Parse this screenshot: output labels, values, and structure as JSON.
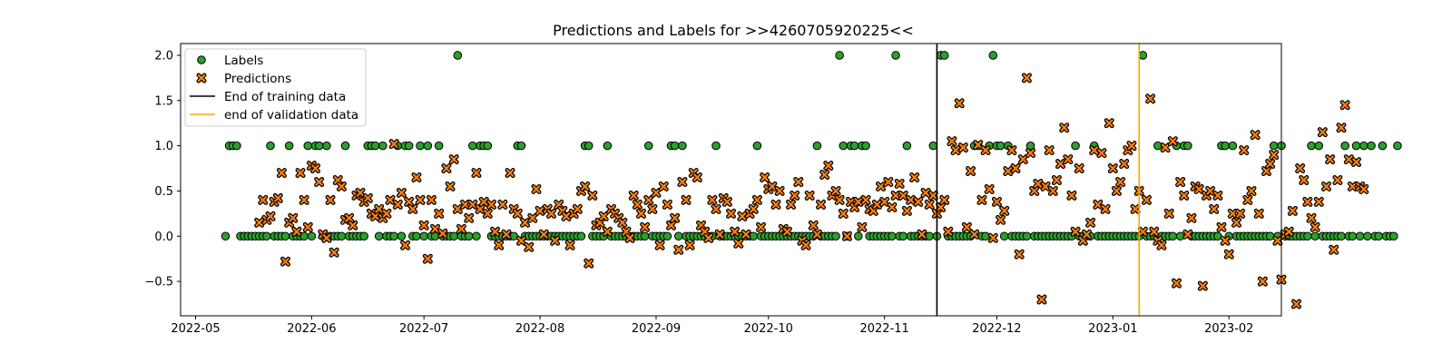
{
  "colors": {
    "label_fill": "#2ca02c",
    "prediction_fill": "#ff7f0e",
    "marker_edge": "#000000",
    "training_line": "#000000",
    "validation_line": "#ffa500"
  },
  "chart_data": {
    "type": "scatter",
    "title": "Predictions and Labels for >>4260705920225<<",
    "xlabel": "",
    "ylabel": "",
    "x_type": "date",
    "xlim": [
      "2022-04-27",
      "2023-02-15"
    ],
    "ylim": [
      -0.88,
      2.13
    ],
    "x_ticks": [
      {
        "value": "2022-05-01",
        "label": "2022-05"
      },
      {
        "value": "2022-06-01",
        "label": "2022-06"
      },
      {
        "value": "2022-07-01",
        "label": "2022-07"
      },
      {
        "value": "2022-08-01",
        "label": "2022-08"
      },
      {
        "value": "2022-09-01",
        "label": "2022-09"
      },
      {
        "value": "2022-10-01",
        "label": "2022-10"
      },
      {
        "value": "2022-11-01",
        "label": "2022-11"
      },
      {
        "value": "2022-12-01",
        "label": "2022-12"
      },
      {
        "value": "2023-01-01",
        "label": "2023-01"
      },
      {
        "value": "2023-02-01",
        "label": "2023-02"
      }
    ],
    "y_ticks": [
      {
        "value": 2.0,
        "label": "2.0"
      },
      {
        "value": 1.5,
        "label": "1.5"
      },
      {
        "value": 1.0,
        "label": "1.0"
      },
      {
        "value": 0.5,
        "label": "0.5"
      },
      {
        "value": 0.0,
        "label": "0.0"
      },
      {
        "value": -0.5,
        "label": "−0.5"
      }
    ],
    "grid": false,
    "legend_position": "top-left",
    "legend": [
      {
        "label": "Labels",
        "kind": "labels"
      },
      {
        "label": "Predictions",
        "kind": "predictions"
      },
      {
        "label": "End of training data",
        "kind": "training_line"
      },
      {
        "label": "end of validation data",
        "kind": "validation_line"
      }
    ],
    "vertical_lines": [
      {
        "name": "End of training data",
        "x": "2022-11-15"
      },
      {
        "name": "end of validation data",
        "x": "2023-01-08"
      }
    ],
    "series": [
      {
        "name": "Labels",
        "marker": "circle",
        "start_date": "2022-05-09",
        "values": [
          0,
          1,
          1,
          1,
          0,
          0,
          0,
          0,
          0,
          0,
          0,
          0,
          1,
          0,
          0,
          0,
          0,
          1,
          0,
          0,
          0,
          0,
          1,
          0,
          1,
          1,
          0,
          1,
          0,
          0,
          0,
          0,
          1,
          0,
          0,
          0,
          0,
          0,
          1,
          1,
          1,
          0,
          1,
          0,
          0,
          0,
          1,
          0,
          1,
          1,
          0,
          0,
          1,
          0,
          1,
          0,
          0,
          1,
          0,
          0,
          0,
          0,
          2,
          0,
          0,
          0,
          1,
          0,
          1,
          1,
          1,
          0,
          0,
          0,
          0,
          0,
          0,
          0,
          1,
          1,
          0,
          0,
          0,
          0,
          0,
          0,
          0,
          0,
          0,
          0,
          0,
          0,
          0,
          0,
          0,
          0,
          1,
          1,
          0,
          0,
          0,
          0,
          1,
          0,
          0,
          0,
          0,
          0,
          0,
          0,
          0,
          0,
          0,
          1,
          0,
          0,
          0,
          0,
          0,
          1,
          1,
          0,
          1,
          0,
          0,
          0,
          0,
          0,
          0,
          0,
          0,
          1,
          0,
          0,
          0,
          0,
          0,
          0,
          0,
          0,
          0,
          0,
          1,
          0,
          0,
          0,
          0,
          0,
          0,
          0,
          0,
          0,
          0,
          0,
          0,
          0,
          0,
          0,
          1,
          0,
          0,
          0,
          0,
          0,
          2,
          1,
          0,
          1,
          1,
          0,
          1,
          1,
          0,
          0,
          0,
          0,
          0,
          0,
          0,
          2,
          0,
          0,
          1,
          0,
          0,
          0,
          0,
          0,
          0,
          1,
          0,
          2,
          2,
          0,
          0,
          0,
          0,
          0,
          0,
          0,
          1,
          1,
          0,
          0,
          1,
          2,
          1,
          1,
          0,
          1,
          0,
          0,
          0,
          0,
          0,
          1,
          0,
          0,
          0,
          0,
          0,
          0,
          0,
          0,
          0,
          0,
          0,
          1,
          0,
          0,
          0,
          0,
          1,
          0,
          0,
          0,
          0,
          0,
          0,
          0,
          0,
          0,
          0,
          0,
          0,
          2,
          0,
          0,
          0,
          1,
          0,
          0,
          0,
          0,
          1,
          0,
          1,
          1,
          0,
          0,
          0,
          0,
          0,
          0,
          0,
          0,
          1,
          1,
          0,
          1,
          0,
          0,
          0,
          0,
          0,
          0,
          0,
          0,
          0,
          0,
          1,
          0,
          1,
          0,
          0,
          0,
          0,
          0,
          0,
          0,
          1,
          0,
          1,
          0,
          0,
          0,
          0,
          0,
          0,
          1,
          0,
          0,
          1,
          0,
          1,
          0,
          1,
          0,
          0,
          1,
          0,
          0,
          0,
          1
        ]
      },
      {
        "name": "Predictions",
        "marker": "x",
        "start_date": "2022-05-18",
        "values": [
          0.15,
          0.4,
          0.18,
          0.22,
          0.38,
          0.42,
          0.7,
          -0.28,
          0.15,
          0.2,
          0.05,
          0.7,
          0.4,
          0.1,
          0.78,
          0.75,
          0.6,
          0.02,
          -0.02,
          0.4,
          -0.18,
          0.62,
          0.55,
          0.18,
          0.2,
          0.12,
          0.45,
          0.48,
          0.38,
          0.42,
          0.25,
          0.22,
          0.3,
          0.2,
          0.25,
          0.4,
          1.02,
          0.35,
          0.48,
          -0.1,
          0.38,
          0.3,
          0.65,
          0.4,
          0.12,
          -0.25,
          0.4,
          0.08,
          0.25,
          0.03,
          0.75,
          0.55,
          0.85,
          0.3,
          0.08,
          0.35,
          0.2,
          0.35,
          0.7,
          0.3,
          0.38,
          0.25,
          0.35,
          0.05,
          -0.1,
          0.35,
          0.02,
          0.7,
          0.3,
          0.25,
          -0.05,
          0.15,
          -0.12,
          0.2,
          0.52,
          0.28,
          0.02,
          0.3,
          0.25,
          -0.05,
          0.35,
          0.28,
          0.22,
          -0.1,
          0.25,
          0.3,
          0.5,
          0.55,
          -0.3,
          0.45,
          0.12,
          0.15,
          0.22,
          0.05,
          0.3,
          0.25,
          0.2,
          0.15,
          0.05,
          -0.02,
          0.45,
          0.35,
          0.25,
          0.1,
          0.4,
          0.3,
          0.48,
          -0.1,
          0.55,
          0.35,
          0.12,
          0.2,
          -0.15,
          0.6,
          0.4,
          -0.1,
          0.7,
          0.65,
          0.12,
          0.05,
          -0.02,
          0.4,
          0.3,
          0.02,
          0.42,
          0.38,
          0.25,
          0.05,
          -0.08,
          0.22,
          0.02,
          0.25,
          0.3,
          0.4,
          0.1,
          0.65,
          0.52,
          0.55,
          0.35,
          0.5,
          0.08,
          0.05,
          0.35,
          0.45,
          0.6,
          -0.05,
          -0.1,
          0.45,
          0.12,
          0.02,
          0.35,
          0.68,
          0.78,
          0.45,
          0.5,
          0.4,
          0.25,
          0.0,
          0.38,
          0.32,
          0.38,
          0.1,
          0.4,
          0.3,
          0.28,
          0.35,
          0.55,
          0.38,
          0.6,
          0.32,
          0.45,
          0.58,
          0.45,
          0.28,
          0.4,
          0.65,
          0.38,
          0.02,
          0.48,
          0.35,
          0.45,
          0.25,
          0.32,
          0.4,
          0.05,
          1.05,
          0.95,
          1.47,
          0.98,
          0.1,
          0.72,
          0.02,
          1.01,
          0.4,
          0.95,
          0.52,
          -0.02,
          0.38,
          0.18,
          0.28,
          0.72,
          0.95,
          0.75,
          -0.2,
          0.85,
          1.75,
          0.92,
          0.5,
          0.58,
          -0.7,
          0.55,
          0.95,
          0.5,
          0.62,
          0.8,
          1.2,
          0.85,
          0.45,
          0.05,
          0.75,
          -0.05,
          0.02,
          0.15,
          0.95,
          0.35,
          0.92,
          0.3,
          1.25,
          0.75,
          0.5,
          0.6,
          0.8,
          0.95,
          1.0,
          0.3,
          0.5,
          0.05,
          0.4,
          1.52,
          0.05,
          -0.05,
          -0.1,
          0.98,
          0.25,
          1.05,
          -0.52,
          0.6,
          0.45,
          0.02,
          0.2,
          0.55,
          0.52,
          -0.55,
          0.45,
          0.5,
          0.3,
          0.45,
          0.1,
          -0.05,
          -0.2,
          0.25,
          0.15,
          0.25,
          0.95,
          0.4,
          0.5,
          1.12,
          0.25,
          -0.5,
          0.72,
          0.8,
          0.9,
          -0.05,
          -0.48,
          0.02,
          0.05,
          0.28,
          -0.75,
          0.75,
          0.62,
          0.38,
          0.2,
          0.1,
          0.38,
          1.15,
          0.55,
          0.85,
          -0.15,
          0.62,
          1.2,
          1.45,
          0.85,
          0.55,
          0.82,
          0.55,
          0.52
        ]
      }
    ]
  }
}
